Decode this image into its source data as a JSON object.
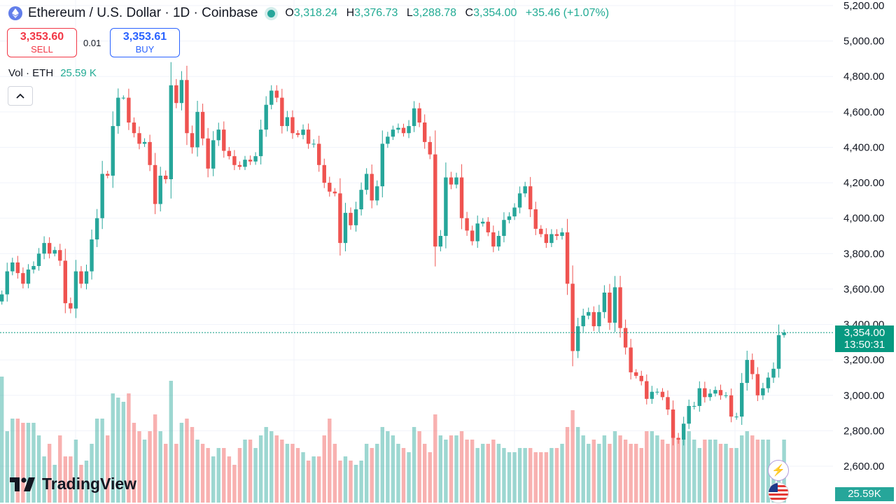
{
  "legend": {
    "symbol": "Ethereum / U.S. Dollar · 1D · Coinbase",
    "open_label": "O",
    "open": "3,318.24",
    "high_label": "H",
    "high": "3,376.73",
    "low_label": "L",
    "low": "3,288.78",
    "close_label": "C",
    "close": "3,354.00",
    "change": "+35.46 (+1.07%)"
  },
  "trade": {
    "sell_price": "3,353.60",
    "sell_label": "SELL",
    "spread": "0.01",
    "buy_price": "3,353.61",
    "buy_label": "BUY"
  },
  "volume_legend": {
    "label": "Vol · ETH",
    "value": "25.59 K"
  },
  "brand": "TradingView",
  "last_price_label": {
    "price": "3,354.00",
    "countdown": "13:50:31"
  },
  "volume_label": "25.59K",
  "colors": {
    "up": "#26a69a",
    "down": "#ef5350",
    "vol_up": "#26a69a",
    "vol_down": "#ef5350",
    "price_label": "#089981"
  },
  "icons": [
    "ethereum-icon",
    "status-dot-icon",
    "chevron-up-icon",
    "tradingview-logo-icon",
    "flash-icon",
    "us-flag-icon"
  ],
  "chart_data": {
    "type": "candlestick",
    "y_axis": {
      "min": 2600,
      "max": 5200,
      "ticks": [
        2600,
        2800,
        3000,
        3200,
        3400,
        3600,
        3800,
        4000,
        4200,
        4400,
        4600,
        4800,
        5000,
        5200
      ],
      "tick_labels": [
        "2,600.00",
        "2,800.00",
        "3,000.00",
        "3,200.00",
        "3,400.00",
        "3,600.00",
        "3,800.00",
        "4,000.00",
        "4,200.00",
        "4,400.00",
        "4,600.00",
        "4,800.00",
        "5,000.00",
        "5,200.00"
      ]
    },
    "last_price": 3354.0,
    "closes": [
      3570,
      3700,
      3750,
      3690,
      3630,
      3710,
      3730,
      3800,
      3860,
      3800,
      3820,
      3760,
      3520,
      3490,
      3700,
      3630,
      3700,
      3880,
      4000,
      4250,
      4240,
      4520,
      4680,
      4680,
      4540,
      4480,
      4420,
      4430,
      4300,
      4080,
      4240,
      4220,
      4750,
      4650,
      4780,
      4480,
      4400,
      4600,
      4450,
      4280,
      4440,
      4500,
      4380,
      4350,
      4300,
      4290,
      4330,
      4320,
      4350,
      4500,
      4640,
      4720,
      4680,
      4520,
      4570,
      4480,
      4470,
      4500,
      4420,
      4420,
      4300,
      4200,
      4150,
      4140,
      3860,
      4030,
      3960,
      4050,
      4160,
      4250,
      4100,
      4180,
      4420,
      4460,
      4500,
      4510,
      4480,
      4520,
      4620,
      4540,
      4430,
      4360,
      3840,
      3900,
      4230,
      4190,
      4230,
      4000,
      3930,
      3870,
      3970,
      3980,
      3920,
      3840,
      3900,
      3990,
      4010,
      4060,
      4140,
      4180,
      4050,
      3940,
      3910,
      3860,
      3910,
      3900,
      3920,
      3630,
      3250,
      3390,
      3450,
      3470,
      3390,
      3470,
      3580,
      3410,
      3610,
      3380,
      3270,
      3130,
      3110,
      3080,
      2980,
      3020,
      3020,
      2990,
      2920,
      2760,
      2750,
      2840,
      2940,
      2940,
      3040,
      2990,
      3010,
      3030,
      3000,
      3000,
      2880,
      2880,
      3070,
      3200,
      3120,
      3000,
      3040,
      3100,
      3150,
      3340,
      3354
    ],
    "volume_scale": {
      "min": 0,
      "max": 3,
      "unit": "K (relative)"
    },
    "volumes": [
      3.0,
      1.7,
      2.0,
      2.0,
      1.9,
      1.9,
      1.9,
      1.6,
      1.1,
      1.4,
      0.9,
      1.6,
      1.1,
      1.1,
      1.5,
      0.9,
      1.0,
      1.4,
      2.0,
      2.0,
      1.6,
      2.6,
      2.5,
      2.4,
      2.6,
      1.9,
      1.7,
      1.5,
      1.7,
      2.1,
      1.7,
      1.4,
      2.9,
      1.4,
      1.9,
      2.0,
      1.8,
      1.5,
      1.4,
      1.3,
      1.1,
      1.3,
      1.3,
      1.1,
      0.9,
      1.3,
      1.5,
      1.5,
      1.3,
      1.6,
      1.8,
      1.7,
      1.6,
      1.5,
      1.4,
      1.4,
      1.3,
      1.2,
      1.0,
      1.1,
      1.1,
      1.6,
      2.0,
      1.4,
      1.0,
      1.1,
      1.0,
      0.9,
      1.0,
      1.4,
      1.3,
      1.4,
      1.8,
      1.7,
      1.6,
      1.4,
      1.3,
      1.2,
      1.8,
      1.7,
      1.4,
      1.2,
      2.1,
      1.6,
      1.5,
      1.6,
      1.6,
      1.7,
      1.5,
      1.5,
      1.3,
      1.4,
      1.4,
      1.5,
      1.4,
      1.3,
      1.2,
      1.2,
      1.3,
      1.3,
      1.3,
      1.2,
      1.2,
      1.2,
      1.3,
      1.3,
      1.4,
      1.8,
      2.2,
      1.8,
      1.6,
      1.4,
      1.5,
      1.4,
      1.6,
      1.4,
      1.7,
      1.6,
      1.5,
      1.4,
      1.4,
      1.3,
      1.7,
      1.7,
      1.6,
      1.5,
      1.4,
      1.6,
      1.5,
      1.5,
      1.7,
      1.5,
      1.3,
      1.5,
      1.5,
      1.5,
      1.4,
      1.4,
      1.3,
      1.3,
      1.6,
      1.7,
      1.6,
      1.5,
      1.5,
      1.5,
      0.8,
      0.8,
      1.5
    ]
  }
}
